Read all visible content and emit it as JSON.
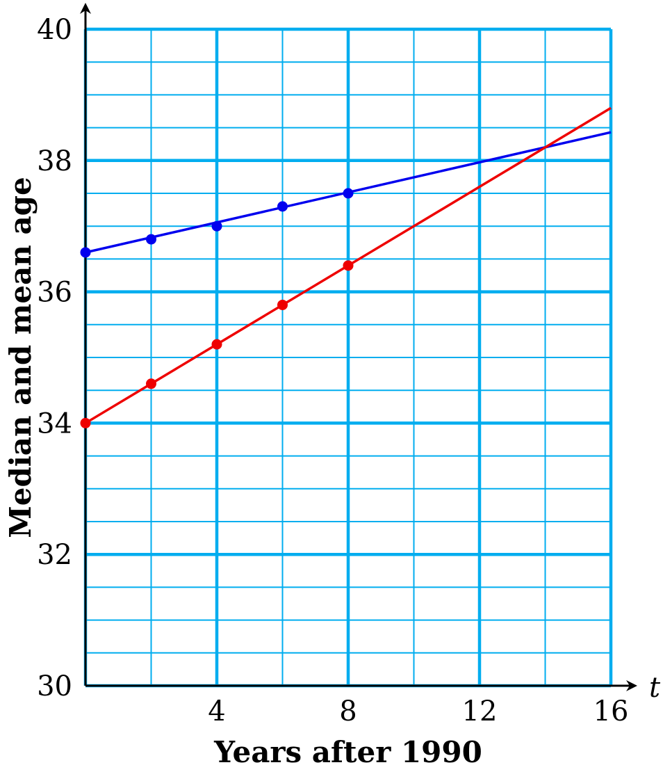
{
  "chart_data": {
    "type": "line",
    "xlabel": "Years after 1990",
    "ylabel": "Median and mean age",
    "x_variable": "t",
    "xlim": [
      0,
      16
    ],
    "ylim": [
      30,
      40
    ],
    "x_ticks": [
      4,
      8,
      12,
      16
    ],
    "x_tick_labels": [
      "4",
      "8",
      "12",
      "16"
    ],
    "y_ticks": [
      30,
      32,
      34,
      36,
      38,
      40
    ],
    "y_tick_labels": [
      "30",
      "32",
      "34",
      "36",
      "38",
      "40"
    ],
    "grid": true,
    "colors": {
      "grid": "#00adef",
      "axis": "#000000"
    },
    "series": [
      {
        "color": "#0000ee",
        "points": [
          {
            "x": 0,
            "y": 36.6
          },
          {
            "x": 2,
            "y": 36.8
          },
          {
            "x": 4,
            "y": 37.0
          },
          {
            "x": 6,
            "y": 37.3
          },
          {
            "x": 8,
            "y": 37.5
          }
        ],
        "line": {
          "from": {
            "x": 0,
            "y": 36.6
          },
          "to": {
            "x": 16,
            "y": 38.43
          }
        }
      },
      {
        "color": "#ee0000",
        "points": [
          {
            "x": 0,
            "y": 34.0
          },
          {
            "x": 2,
            "y": 34.6
          },
          {
            "x": 4,
            "y": 35.2
          },
          {
            "x": 6,
            "y": 35.8
          },
          {
            "x": 8,
            "y": 36.4
          }
        ],
        "line": {
          "from": {
            "x": 0,
            "y": 34.0
          },
          "to": {
            "x": 16,
            "y": 38.8
          }
        }
      }
    ]
  }
}
